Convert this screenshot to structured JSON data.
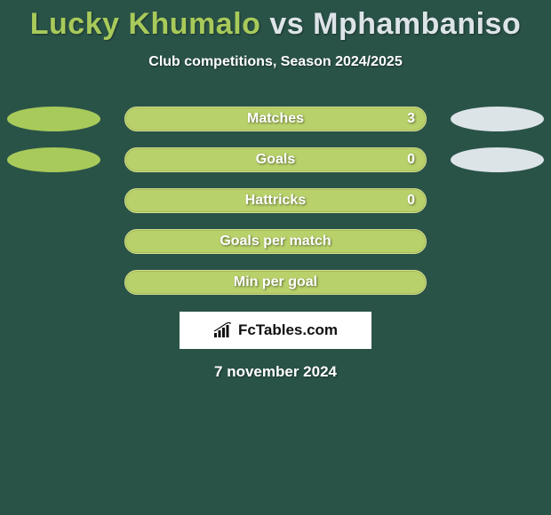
{
  "colors": {
    "background": "#2a5348",
    "player1": "#a8ca5a",
    "player2": "#dde4e8",
    "bar_fill": "#b8d16a",
    "bar_border": "#d6e08a",
    "text": "#ffffff"
  },
  "title": {
    "player1": "Lucky Khumalo",
    "vs": " vs ",
    "player2": "Mphambaniso",
    "fontsize": 34
  },
  "subtitle": "Club competitions, Season 2024/2025",
  "rows": [
    {
      "label": "Matches",
      "value_right": "3",
      "show_ovals": true,
      "show_value": true
    },
    {
      "label": "Goals",
      "value_right": "0",
      "show_ovals": true,
      "show_value": true
    },
    {
      "label": "Hattricks",
      "value_right": "0",
      "show_ovals": false,
      "show_value": true
    },
    {
      "label": "Goals per match",
      "value_right": "",
      "show_ovals": false,
      "show_value": false
    },
    {
      "label": "Min per goal",
      "value_right": "",
      "show_ovals": false,
      "show_value": false
    }
  ],
  "logo": {
    "text": "FcTables.com",
    "icon_name": "bar-chart-icon"
  },
  "date": "7 november 2024"
}
